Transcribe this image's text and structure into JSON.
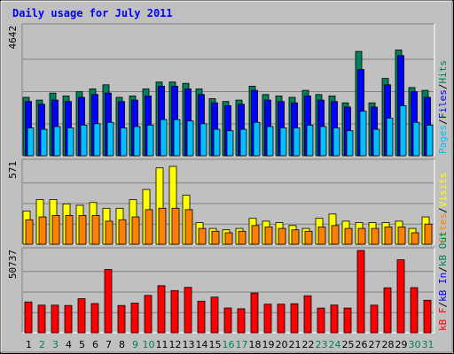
{
  "title": "Daily usage for July 2011",
  "colors": {
    "background": "#c0c0c0",
    "title": "#0000ff",
    "hits": "#00805c",
    "files": "#0000ff",
    "pages": "#00c0ff",
    "visits": "#ffff00",
    "sites": "#ff8000",
    "kb_in": "#0000ff",
    "kb_out": "#00805c",
    "kb_f": "#ff0000",
    "weekday": "#000000",
    "weekend": "#00805c"
  },
  "chart_data": [
    {
      "type": "bar",
      "panel": "hits-files-pages",
      "ymax_label": "4642",
      "ymax": 4642,
      "legend": [
        "Pages",
        "/",
        "Files",
        "/",
        "Hits"
      ],
      "categories": [
        "1",
        "2",
        "3",
        "4",
        "5",
        "6",
        "7",
        "8",
        "9",
        "10",
        "11",
        "12",
        "13",
        "14",
        "15",
        "16",
        "17",
        "18",
        "19",
        "20",
        "21",
        "22",
        "23",
        "24",
        "25",
        "26",
        "27",
        "28",
        "29",
        "30",
        "31"
      ],
      "series": [
        {
          "name": "Hits",
          "values": [
            2100,
            2000,
            2250,
            2150,
            2300,
            2400,
            2550,
            2100,
            2150,
            2400,
            2650,
            2650,
            2600,
            2400,
            2050,
            1950,
            2000,
            2500,
            2200,
            2150,
            2100,
            2350,
            2200,
            2150,
            1900,
            3750,
            1900,
            2780,
            3800,
            2450,
            2350
          ]
        },
        {
          "name": "Files",
          "values": [
            1950,
            1850,
            2000,
            1950,
            2100,
            2200,
            2250,
            1950,
            2000,
            2150,
            2500,
            2500,
            2400,
            2200,
            1900,
            1800,
            1850,
            2350,
            2000,
            1950,
            1900,
            2150,
            2000,
            1950,
            1750,
            3100,
            1750,
            2550,
            3600,
            2300,
            2100
          ]
        },
        {
          "name": "Pages",
          "values": [
            1000,
            950,
            1050,
            1000,
            1100,
            1150,
            1200,
            1000,
            1050,
            1100,
            1300,
            1300,
            1250,
            1150,
            950,
            900,
            950,
            1200,
            1050,
            1000,
            1000,
            1100,
            1050,
            1000,
            900,
            1600,
            950,
            1350,
            1800,
            1200,
            1100
          ]
        }
      ]
    },
    {
      "type": "bar",
      "panel": "visits-sites",
      "ymax_label": "571",
      "ymax": 571,
      "legend": [
        "Sites",
        "/",
        "Visits"
      ],
      "categories": [
        "1",
        "2",
        "3",
        "4",
        "5",
        "6",
        "7",
        "8",
        "9",
        "10",
        "11",
        "12",
        "13",
        "14",
        "15",
        "16",
        "17",
        "18",
        "19",
        "20",
        "21",
        "22",
        "23",
        "24",
        "25",
        "26",
        "27",
        "28",
        "29",
        "30",
        "31"
      ],
      "series": [
        {
          "name": "Visits",
          "values": [
            230,
            310,
            310,
            280,
            270,
            290,
            250,
            250,
            310,
            380,
            530,
            540,
            340,
            150,
            110,
            100,
            110,
            180,
            160,
            150,
            130,
            110,
            180,
            210,
            160,
            150,
            150,
            150,
            160,
            110,
            190
          ]
        },
        {
          "name": "Sites",
          "values": [
            170,
            190,
            200,
            200,
            200,
            200,
            160,
            170,
            190,
            240,
            250,
            250,
            240,
            110,
            90,
            80,
            90,
            130,
            120,
            110,
            100,
            90,
            120,
            130,
            110,
            110,
            110,
            120,
            120,
            80,
            140
          ]
        }
      ]
    },
    {
      "type": "bar",
      "panel": "kbytes",
      "ymax_label": "50737",
      "ymax": 50737,
      "legend": [
        "kB F",
        "/",
        "kB In",
        "/",
        "kB Out"
      ],
      "categories": [
        "1",
        "2",
        "3",
        "4",
        "5",
        "6",
        "7",
        "8",
        "9",
        "10",
        "11",
        "12",
        "13",
        "14",
        "15",
        "16",
        "17",
        "18",
        "19",
        "20",
        "21",
        "22",
        "23",
        "24",
        "25",
        "26",
        "27",
        "28",
        "29",
        "30",
        "31"
      ],
      "series": [
        {
          "name": "kB F",
          "values": [
            19000,
            17000,
            17000,
            16800,
            21000,
            18000,
            39000,
            16800,
            18300,
            23000,
            29000,
            26000,
            28000,
            19500,
            22000,
            15300,
            14800,
            24500,
            17600,
            17600,
            17900,
            22800,
            15200,
            17100,
            15200,
            50737,
            17000,
            27700,
            45000,
            27800,
            20000
          ]
        }
      ]
    }
  ],
  "weekend_days": [
    2,
    3,
    9,
    10,
    16,
    17,
    23,
    24,
    30,
    31
  ]
}
